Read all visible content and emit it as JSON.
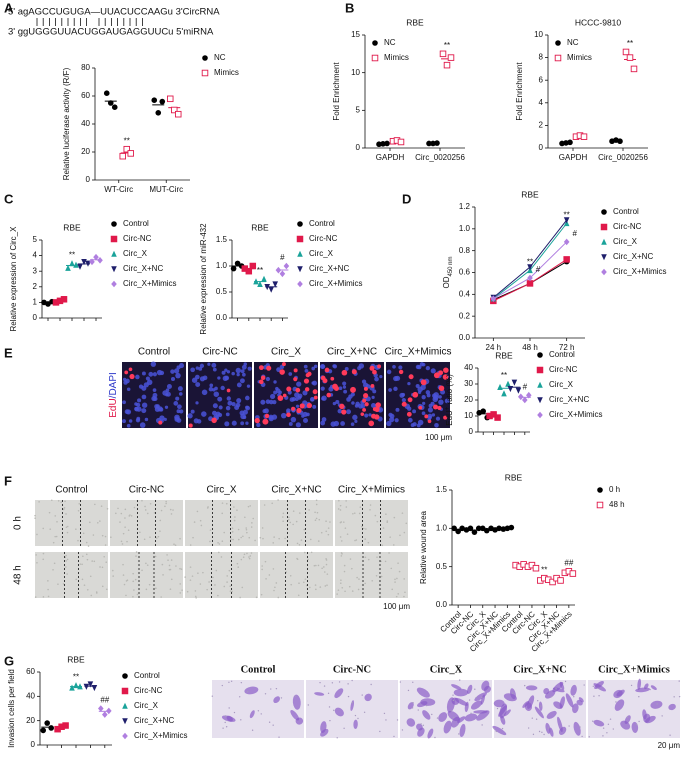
{
  "panel_letters": [
    "A",
    "B",
    "C",
    "D",
    "E",
    "F",
    "G"
  ],
  "sequence": {
    "line1": "5'  agAGCCUGUGA—UUACUCCAAGu 3'CircRNA",
    "line2": "3'  ggUGGGUUACUGGAUGAGGUUCu 5'miRNA"
  },
  "edu_images": {
    "labels": [
      "Control",
      "Circ-NC",
      "Circ_X",
      "Circ_X+NC",
      "Circ_X+Mimics"
    ],
    "stain": [
      "EdU",
      "/DAPI"
    ],
    "scale": "100 μm"
  },
  "wound_images": {
    "labels": [
      "Control",
      "Circ-NC",
      "Circ_X",
      "Circ_X+NC",
      "Circ_X+Mimics"
    ],
    "rows": [
      "0 h",
      "48 h"
    ],
    "scale": "100 μm"
  },
  "invasion_images": {
    "labels": [
      "Control",
      "Circ-NC",
      "Circ_X",
      "Circ_X+NC",
      "Circ_X+Mimics"
    ],
    "scale": "20 μm"
  },
  "chart_data": [
    {
      "type": "dot",
      "y_label": "Relative luciferase activity (R/F)",
      "categories": [
        "WT-Circ",
        "MUT-Circ"
      ],
      "ylim": [
        0,
        80
      ],
      "yticks": [
        0,
        20,
        40,
        60,
        80
      ],
      "legend": "right",
      "series": [
        {
          "name": "NC",
          "color": "#000000",
          "marker": "circle",
          "values": [
            [
              62,
              55,
              52
            ],
            [
              57,
              48,
              56
            ]
          ]
        },
        {
          "name": "Mimics",
          "color": "#e0194a",
          "marker": "open-square",
          "values": [
            [
              17,
              22,
              19
            ],
            [
              58,
              50,
              47
            ]
          ],
          "labels": [
            "**",
            null
          ]
        }
      ]
    },
    {
      "type": "dot",
      "title": "RBE",
      "y_label": "Fold Enrichment",
      "categories": [
        "GAPDH",
        "Circ_0020256"
      ],
      "ylim": [
        0,
        15
      ],
      "yticks": [
        0,
        5,
        10,
        15
      ],
      "legend": "upper left",
      "series": [
        {
          "name": "NC",
          "color": "#000000",
          "marker": "circle",
          "values": [
            [
              0.5,
              0.55,
              0.6
            ],
            [
              0.6,
              0.6,
              0.65
            ]
          ]
        },
        {
          "name": "Mimics",
          "color": "#e0194a",
          "marker": "open-square",
          "values": [
            [
              0.9,
              1.0,
              0.8
            ],
            [
              12.5,
              11.0,
              12.0
            ]
          ],
          "labels": [
            null,
            "**"
          ]
        }
      ]
    },
    {
      "type": "dot",
      "title": "HCCC-9810",
      "y_label": "Fold Enrichment",
      "categories": [
        "GAPDH",
        "Circ_0020256"
      ],
      "ylim": [
        0,
        10
      ],
      "yticks": [
        0,
        2,
        4,
        6,
        8,
        10
      ],
      "legend": "upper left",
      "series": [
        {
          "name": "NC",
          "color": "#000000",
          "marker": "circle",
          "values": [
            [
              0.4,
              0.45,
              0.5
            ],
            [
              0.6,
              0.7,
              0.6
            ]
          ]
        },
        {
          "name": "Mimics",
          "color": "#e0194a",
          "marker": "open-square",
          "values": [
            [
              1.0,
              1.1,
              1.0
            ],
            [
              8.5,
              8.0,
              7.0
            ]
          ],
          "labels": [
            null,
            "**"
          ]
        }
      ]
    },
    {
      "type": "dot",
      "title": "RBE",
      "y_label": "Relative expression of Circ_X",
      "categories": [
        null,
        null,
        null,
        null,
        null
      ],
      "ylim": [
        0,
        5
      ],
      "yticks": [
        0,
        1,
        2,
        3,
        4,
        5
      ],
      "legend": "right",
      "series": [
        {
          "name": "Control",
          "color": "#000000",
          "marker": "circle",
          "values": [
            [
              1.0,
              0.9,
              1.05
            ],
            null,
            null,
            null,
            null
          ]
        },
        {
          "name": "Circ-NC",
          "color": "#e0194a",
          "marker": "square",
          "values": [
            null,
            [
              1.0,
              1.1,
              1.2
            ],
            null,
            null,
            null
          ]
        },
        {
          "name": "Circ_X",
          "color": "#1aa39a",
          "marker": "triangle",
          "values": [
            null,
            null,
            [
              3.2,
              3.5,
              3.4
            ],
            null,
            null
          ],
          "labels": [
            null,
            null,
            "**",
            null,
            null
          ]
        },
        {
          "name": "Circ_X+NC",
          "color": "#1f1f6b",
          "marker": "triangle-down",
          "values": [
            null,
            null,
            null,
            [
              3.3,
              3.6,
              3.5
            ],
            null
          ]
        },
        {
          "name": "Circ_X+Mimics",
          "color": "#b07fe0",
          "marker": "diamond",
          "values": [
            null,
            null,
            null,
            null,
            [
              3.6,
              3.9,
              3.7
            ]
          ]
        }
      ]
    },
    {
      "type": "dot",
      "title": "RBE",
      "y_label": "Relative expression of miR-432",
      "categories": [
        null,
        null,
        null,
        null,
        null
      ],
      "ylim": [
        0,
        1.5
      ],
      "yticks": [
        {
          "value": 0,
          "label": "0.0"
        },
        0.5,
        {
          "value": 1,
          "label": "1.0"
        },
        1.5
      ],
      "legend": "right",
      "series": [
        {
          "name": "Control",
          "color": "#000000",
          "marker": "circle",
          "values": [
            [
              0.95,
              1.05,
              1.0
            ],
            null,
            null,
            null,
            null
          ]
        },
        {
          "name": "Circ-NC",
          "color": "#e0194a",
          "marker": "square",
          "values": [
            null,
            [
              0.95,
              0.9,
              1.0
            ],
            null,
            null,
            null
          ]
        },
        {
          "name": "Circ_X",
          "color": "#1aa39a",
          "marker": "triangle",
          "values": [
            null,
            null,
            [
              0.7,
              0.65,
              0.75
            ],
            null,
            null
          ],
          "labels": [
            null,
            null,
            "**",
            null,
            null
          ]
        },
        {
          "name": "Circ_X+NC",
          "color": "#1f1f6b",
          "marker": "triangle-down",
          "values": [
            null,
            null,
            null,
            [
              0.6,
              0.55,
              0.65
            ],
            null
          ]
        },
        {
          "name": "Circ_X+Mimics",
          "color": "#b07fe0",
          "marker": "diamond",
          "values": [
            null,
            null,
            null,
            null,
            [
              0.92,
              0.85,
              1.0
            ]
          ],
          "labels": [
            null,
            null,
            null,
            null,
            "#"
          ]
        }
      ]
    },
    {
      "type": "line",
      "title": "RBE",
      "y_label": [
        "OD",
        "450 nm"
      ],
      "categories": [
        "24 h",
        "48 h",
        "72 h"
      ],
      "ylim": [
        0,
        1.2
      ],
      "yticks": [
        {
          "value": 0,
          "label": "0.0"
        },
        0.2,
        0.4,
        0.6,
        0.8,
        {
          "value": 1,
          "label": "1.0"
        },
        1.2
      ],
      "legend": "right",
      "series": [
        {
          "name": "Control",
          "color": "#000000",
          "marker": "circle",
          "values": [
            0.35,
            0.5,
            0.7
          ]
        },
        {
          "name": "Circ-NC",
          "color": "#e0194a",
          "marker": "square",
          "values": [
            0.34,
            0.5,
            0.72
          ]
        },
        {
          "name": "Circ_X",
          "color": "#1aa39a",
          "marker": "triangle",
          "values": [
            0.36,
            0.62,
            1.05
          ],
          "labels": [
            null,
            "**",
            "**"
          ]
        },
        {
          "name": "Circ_X+NC",
          "color": "#1f1f6b",
          "marker": "triangle-down",
          "values": [
            0.37,
            0.65,
            1.08
          ]
        },
        {
          "name": "Circ_X+Mimics",
          "color": "#b07fe0",
          "marker": "diamond",
          "values": [
            0.36,
            0.55,
            0.88
          ],
          "labels": [
            null,
            "#",
            "#"
          ]
        }
      ]
    },
    {
      "type": "dot",
      "title": "RBE",
      "y_label": [
        "EdU",
        "+",
        " ratio (%)"
      ],
      "categories": [
        null,
        null,
        null,
        null,
        null
      ],
      "ylim": [
        0,
        40
      ],
      "yticks": [
        0,
        10,
        20,
        30,
        40
      ],
      "legend": "right",
      "series": [
        {
          "name": "Control",
          "color": "#000000",
          "marker": "circle",
          "values": [
            [
              12,
              13,
              9
            ],
            null,
            null,
            null,
            null
          ]
        },
        {
          "name": "Circ-NC",
          "color": "#e0194a",
          "marker": "square",
          "values": [
            null,
            [
              10,
              11,
              9
            ],
            null,
            null,
            null
          ]
        },
        {
          "name": "Circ_X",
          "color": "#1aa39a",
          "marker": "triangle",
          "values": [
            null,
            null,
            [
              28,
              24,
              30
            ],
            null,
            null
          ],
          "labels": [
            null,
            null,
            "**",
            null,
            null
          ]
        },
        {
          "name": "Circ_X+NC",
          "color": "#1f1f6b",
          "marker": "triangle-down",
          "values": [
            null,
            null,
            null,
            [
              27,
              31,
              26
            ],
            null
          ]
        },
        {
          "name": "Circ_X+Mimics",
          "color": "#b07fe0",
          "marker": "diamond",
          "values": [
            null,
            null,
            null,
            null,
            [
              22,
              20,
              23
            ]
          ],
          "labels": [
            null,
            null,
            null,
            null,
            "#"
          ]
        }
      ]
    },
    {
      "type": "dot",
      "title": "RBE",
      "y_label": "Relative wound area",
      "categories": [
        "Control",
        "Circ-NC",
        "Circ_X",
        "Circ_X+NC",
        "Circ_X+Mimics",
        "Control",
        "Circ-NC",
        "Circ_X",
        "Circ_X+NC",
        "Circ_X+Mimics"
      ],
      "ylim": [
        0,
        1.5
      ],
      "yticks": [
        {
          "value": 0,
          "label": "0.0"
        },
        0.5,
        {
          "value": 1,
          "label": "1.0"
        },
        1.5
      ],
      "legend": "right",
      "series": [
        {
          "name": "0 h",
          "color": "#000000",
          "marker": "circle",
          "values": [
            [
              1.0,
              0.96,
              1.0
            ],
            [
              0.98,
              1.0,
              0.95
            ],
            [
              1.0,
              1.0,
              0.97
            ],
            [
              1.0,
              0.98,
              1.0
            ],
            [
              0.99,
              1.0,
              1.01
            ],
            null,
            null,
            null,
            null,
            null
          ]
        },
        {
          "name": "48 h",
          "color": "#e0194a",
          "marker": "open-square",
          "values": [
            null,
            null,
            null,
            null,
            null,
            [
              0.52,
              0.5,
              0.53
            ],
            [
              0.5,
              0.52,
              0.48
            ],
            [
              0.32,
              0.35,
              0.33
            ],
            [
              0.3,
              0.35,
              0.32
            ],
            [
              0.42,
              0.44,
              0.41
            ]
          ],
          "labels": [
            null,
            null,
            null,
            null,
            null,
            null,
            null,
            "**",
            null,
            "##"
          ]
        }
      ]
    },
    {
      "type": "dot",
      "title": "RBE",
      "y_label": "Invasion cells per field",
      "categories": [
        null,
        null,
        null,
        null,
        null
      ],
      "ylim": [
        0,
        60
      ],
      "yticks": [
        0,
        20,
        40,
        60
      ],
      "legend": "right",
      "series": [
        {
          "name": "Control",
          "color": "#000000",
          "marker": "circle",
          "values": [
            [
              12,
              18,
              14
            ],
            null,
            null,
            null,
            null
          ]
        },
        {
          "name": "Circ-NC",
          "color": "#e0194a",
          "marker": "square",
          "values": [
            null,
            [
              13,
              15,
              16
            ],
            null,
            null,
            null
          ]
        },
        {
          "name": "Circ_X",
          "color": "#1aa39a",
          "marker": "triangle",
          "values": [
            null,
            null,
            [
              47,
              49,
              48
            ],
            null,
            null
          ],
          "labels": [
            null,
            null,
            "**",
            null,
            null
          ]
        },
        {
          "name": "Circ_X+NC",
          "color": "#1f1f6b",
          "marker": "triangle-down",
          "values": [
            null,
            null,
            null,
            [
              48,
              50,
              47
            ],
            null
          ]
        },
        {
          "name": "Circ_X+Mimics",
          "color": "#b07fe0",
          "marker": "diamond",
          "values": [
            null,
            null,
            null,
            null,
            [
              30,
              25,
              28
            ]
          ],
          "labels": [
            null,
            null,
            null,
            null,
            "##"
          ]
        }
      ]
    }
  ]
}
